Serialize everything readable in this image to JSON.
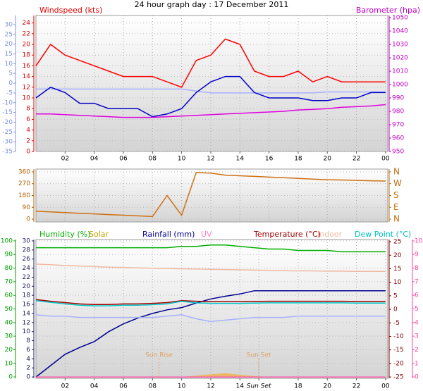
{
  "chart_data": [
    {
      "type": "line",
      "title": "24 hour graph day : 17 December 2011",
      "x": [
        0,
        1,
        2,
        3,
        4,
        5,
        6,
        7,
        8,
        9,
        10,
        11,
        12,
        13,
        14,
        15,
        16,
        17,
        18,
        19,
        20,
        21,
        22,
        23,
        24
      ],
      "xlim": [
        0,
        24.15
      ],
      "xticks": [
        {
          "value": 2,
          "label": "02"
        },
        {
          "value": 4,
          "label": "04"
        },
        {
          "value": 6,
          "label": "06"
        },
        {
          "value": 8,
          "label": "08"
        },
        {
          "value": 10,
          "label": "10"
        },
        12,
        14,
        16,
        18,
        20,
        22,
        {
          "value": 24,
          "label": "00"
        }
      ],
      "ylabel": "Windspeed (kts)",
      "ylim": [
        0,
        25.4
      ],
      "yticks": [
        0,
        2,
        4,
        6,
        8,
        10,
        12,
        14,
        16,
        18,
        20,
        22,
        24
      ],
      "y2label": "Barometer (hpa)",
      "y2lim": [
        950,
        1051.6
      ],
      "y2ticks": [
        950,
        960,
        970,
        980,
        990,
        1000,
        1010,
        1020,
        1030,
        1040,
        1050
      ],
      "y3lim": [
        -35,
        34.7
      ],
      "y3ticks": [
        -35,
        -30,
        -25,
        -20,
        -15,
        -10,
        -5,
        0,
        5,
        10,
        15,
        20,
        25,
        30
      ],
      "grid": true,
      "series": [
        {
          "color": "#ff0000",
          "values": [
            16,
            20,
            18,
            17,
            16,
            15,
            14,
            14,
            14,
            13,
            12,
            17,
            18,
            21,
            20,
            15,
            14,
            14,
            15,
            13,
            14,
            13,
            13,
            13,
            13
          ]
        },
        {
          "color": "#a8b0ff",
          "axis": "y3",
          "values": [
            -3,
            -3,
            -3,
            -3,
            -3,
            -3,
            -3,
            -3,
            -3,
            -3,
            -3,
            -4,
            -5,
            -5,
            -5,
            -5,
            -5,
            -5,
            -5,
            -5,
            -4.5,
            -4.5,
            -4.5,
            -4.5,
            -4.5
          ]
        },
        {
          "color": "#0000c8",
          "values": [
            10,
            12,
            11,
            9,
            9,
            8,
            8,
            8,
            6.5,
            7,
            8,
            11,
            13,
            14,
            14,
            11,
            10,
            10,
            10,
            9.5,
            9.5,
            10,
            10,
            11,
            11
          ]
        },
        {
          "color": "#e000e0",
          "axis": "y2",
          "values": [
            978,
            978,
            977.5,
            977,
            976.5,
            976,
            975.5,
            975.5,
            975.5,
            976,
            976.5,
            977,
            977.5,
            978,
            978.5,
            979,
            979.5,
            980,
            981,
            981.5,
            982,
            983,
            983.5,
            984,
            985
          ]
        }
      ]
    },
    {
      "type": "line",
      "x": [
        0,
        1,
        2,
        3,
        4,
        5,
        6,
        7,
        8,
        9,
        10,
        11,
        12,
        13,
        14,
        15,
        16,
        17,
        18,
        19,
        20,
        21,
        22,
        23,
        24
      ],
      "xlim": [
        0,
        24.15
      ],
      "xticks": [
        2,
        4,
        6,
        8,
        10,
        12,
        14,
        16,
        18,
        20,
        22,
        24
      ],
      "ylim": [
        -21,
        381
      ],
      "yticks": [
        0,
        90,
        180,
        270,
        360
      ],
      "y2lim": [
        -21,
        381
      ],
      "y2ticks": [
        {
          "value": 0,
          "label": "N"
        },
        {
          "value": 90,
          "label": "E"
        },
        {
          "value": 180,
          "label": "S"
        },
        {
          "value": 270,
          "label": "W"
        },
        {
          "value": 360,
          "label": "N"
        }
      ],
      "grid": true,
      "series": [
        {
          "color": "#d07010",
          "values": [
            60,
            55,
            50,
            45,
            40,
            35,
            30,
            25,
            20,
            180,
            30,
            355,
            350,
            335,
            330,
            325,
            320,
            315,
            310,
            305,
            300,
            298,
            295,
            292,
            290
          ]
        }
      ]
    },
    {
      "type": "line",
      "x": [
        0,
        1,
        2,
        3,
        4,
        5,
        6,
        7,
        8,
        9,
        10,
        11,
        12,
        13,
        14,
        15,
        16,
        17,
        18,
        19,
        20,
        21,
        22,
        23,
        24
      ],
      "xlim": [
        0,
        24.15
      ],
      "xticks": [
        {
          "value": 2,
          "label": "02"
        },
        {
          "value": 4,
          "label": "04"
        },
        {
          "value": 6,
          "label": "06"
        },
        {
          "value": 8,
          "label": "08"
        },
        10,
        12,
        14,
        {
          "value": 15.3,
          "label": "Sun Set"
        },
        18,
        20,
        22,
        {
          "value": 24,
          "label": "00"
        }
      ],
      "ylim": [
        -1,
        101
      ],
      "yticks": [
        0,
        10,
        20,
        30,
        40,
        50,
        60,
        70,
        80,
        90,
        100
      ],
      "y3lim": [
        -0.3,
        30.3
      ],
      "y3ticks": [
        0,
        2,
        4,
        6,
        8,
        10,
        12,
        14,
        16,
        18,
        20,
        22,
        24,
        26,
        28,
        30
      ],
      "y2lim": [
        -25.5,
        25.8
      ],
      "y2ticks": [
        -25,
        -20,
        -15,
        -10,
        -5,
        0,
        5,
        10,
        15,
        20,
        25
      ],
      "y4lim": [
        -0.1,
        10.1
      ],
      "y4ticks": [
        0,
        1,
        2,
        3,
        4,
        5,
        6,
        7,
        8,
        9,
        10
      ],
      "grid": true,
      "series": [
        {
          "name": "Humidity (%)",
          "color": "#00b000",
          "values": [
            95,
            95,
            95,
            95,
            95,
            95,
            95,
            95,
            95,
            95,
            96,
            96,
            97,
            97,
            96,
            95,
            94,
            94,
            93,
            93,
            93,
            92,
            92,
            92,
            92
          ]
        },
        {
          "name": "Solar",
          "color": "#f0b050",
          "axis": "y3",
          "style": "area",
          "values": [
            0,
            0,
            0,
            0,
            0,
            0,
            0,
            0,
            0,
            0,
            0,
            0.3,
            0.6,
            0.8,
            0.5,
            0.2,
            0,
            0,
            0,
            0,
            0,
            0,
            0,
            0,
            0
          ]
        },
        {
          "name": "Rainfall (mm)",
          "color": "#000090",
          "axis": "y3",
          "values": [
            0,
            2.5,
            5,
            6.5,
            7.8,
            10,
            11.7,
            13,
            14,
            14.8,
            15.3,
            16.3,
            17.2,
            17.8,
            18.3,
            19,
            19,
            19,
            19,
            19,
            19,
            19,
            19,
            19,
            19
          ]
        },
        {
          "name": "UV",
          "color": "#ff60b0",
          "axis": "y4",
          "values": [
            0,
            0,
            0,
            0,
            0,
            0,
            0,
            0,
            0,
            0,
            0,
            0,
            0,
            0,
            0,
            0,
            0,
            0,
            0,
            0,
            0,
            0,
            0,
            0,
            0
          ]
        },
        {
          "name": "Temperature (°C)",
          "color": "#a00000",
          "axis": "y2",
          "values": [
            3.6,
            3,
            2.5,
            2,
            1.8,
            1.8,
            2,
            2,
            2.2,
            2.5,
            3.2,
            3,
            2.8,
            2.8,
            2.8,
            2.9,
            3,
            3,
            3,
            3,
            3,
            3,
            2.9,
            2.9,
            2.9
          ]
        },
        {
          "name": "Indoor",
          "color": "#f0b8a0",
          "axis": "y2",
          "values": [
            16.7,
            16.5,
            16.2,
            16,
            15.8,
            15.6,
            15.5,
            15.3,
            15.2,
            15.1,
            15,
            14.9,
            14.8,
            14.7,
            14.6,
            14.5,
            14.4,
            14.3,
            14.2,
            14.2,
            14.1,
            14.1,
            14,
            14,
            14
          ]
        },
        {
          "name": "Dew Point (°C)",
          "color": "#00c8c8",
          "axis": "y2",
          "values": [
            3.2,
            2.6,
            2,
            1.5,
            1.3,
            1.3,
            1.5,
            1.5,
            1.7,
            2,
            3,
            2.4,
            2.2,
            2.2,
            2.2,
            2.3,
            2.4,
            2.4,
            2.4,
            2.4,
            2.4,
            2.4,
            2.3,
            2.3,
            2.3
          ]
        },
        {
          "color": "#a8b0ff",
          "axis": "y2",
          "values": [
            -2,
            -2.5,
            -2.5,
            -3,
            -3,
            -3,
            -3,
            -3,
            -3,
            -2.5,
            -2,
            -3.5,
            -4.5,
            -4,
            -3.5,
            -3,
            -3,
            -3,
            -2.5,
            -2.5,
            -2.5,
            -2.5,
            -2.5,
            -2.5,
            -2.5
          ]
        }
      ],
      "annotations": [
        {
          "x": 8.45,
          "text": "Sun Rise"
        },
        {
          "x": 15.3,
          "text": "Sun Set"
        }
      ]
    }
  ]
}
